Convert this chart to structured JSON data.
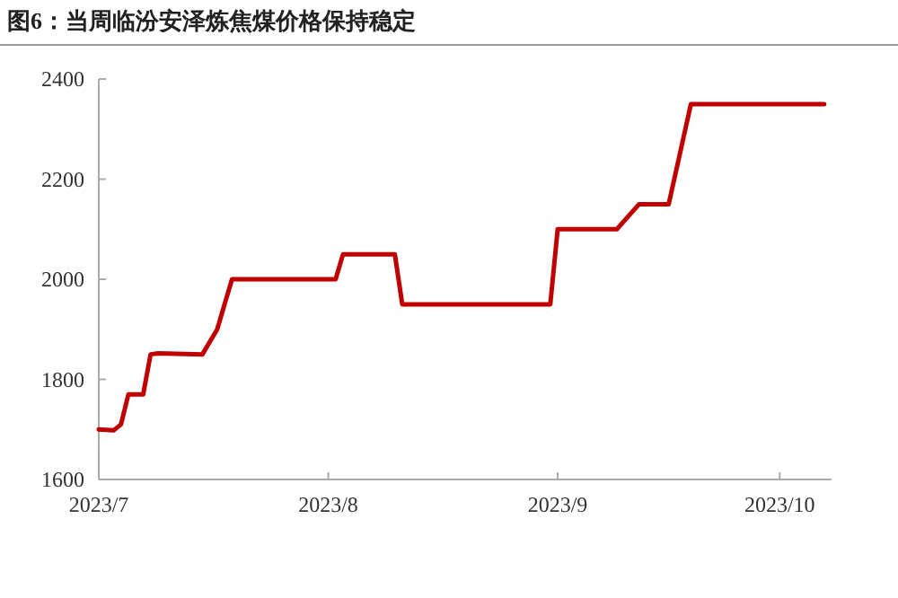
{
  "chart_data": {
    "type": "line",
    "title": "图6：当周临汾安泽炼焦煤价格保持稳定",
    "x": [
      "2023-07-01",
      "2023-07-03",
      "2023-07-04",
      "2023-07-05",
      "2023-07-07",
      "2023-07-08",
      "2023-07-09",
      "2023-07-15",
      "2023-07-17",
      "2023-07-19",
      "2023-08-02",
      "2023-08-03",
      "2023-08-10",
      "2023-08-11",
      "2023-08-31",
      "2023-09-01",
      "2023-09-09",
      "2023-09-12",
      "2023-09-16",
      "2023-09-19",
      "2023-10-07"
    ],
    "series": [
      {
        "color": "#c00000",
        "values": [
          1700,
          1698,
          1710,
          1770,
          1770,
          1850,
          1852,
          1850,
          1900,
          2000,
          2000,
          2050,
          2050,
          1950,
          1950,
          2100,
          2100,
          2150,
          2150,
          2350,
          2350
        ]
      }
    ],
    "xlim": [
      "2023-07-01",
      "2023-10-08"
    ],
    "xticks": [
      {
        "value": "2023-07-01",
        "label": "2023/7"
      },
      {
        "value": "2023-08-01",
        "label": "2023/8"
      },
      {
        "value": "2023-09-01",
        "label": "2023/9"
      },
      {
        "value": "2023-10-01",
        "label": "2023/10"
      }
    ],
    "ylim": [
      1600,
      2400
    ],
    "yticks": [
      1600,
      1800,
      2000,
      2200,
      2400
    ],
    "grid": false,
    "marker": "none",
    "line_style": "solid"
  }
}
